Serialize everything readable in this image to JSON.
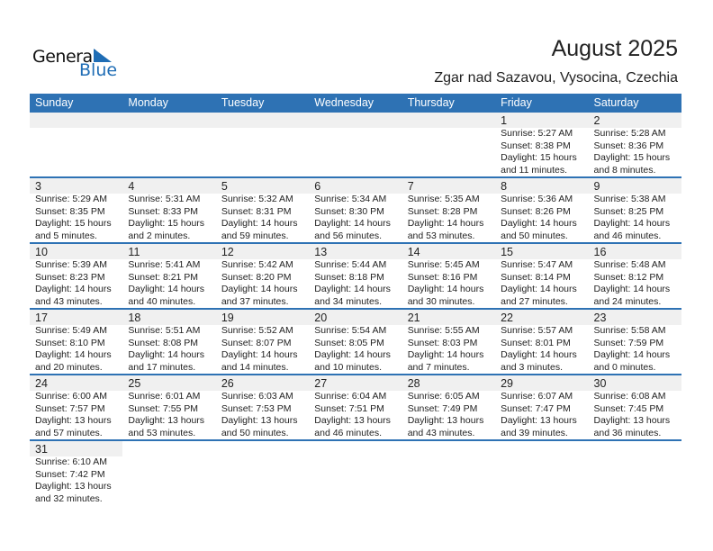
{
  "logo": {
    "line1": "General",
    "line2": "Blue"
  },
  "title": "August 2025",
  "location": "Zgar nad Sazavou, Vysocina, Czechia",
  "colors": {
    "header": "#2e72b4",
    "datebar": "#f0f0f0"
  },
  "days": [
    "Sunday",
    "Monday",
    "Tuesday",
    "Wednesday",
    "Thursday",
    "Friday",
    "Saturday"
  ],
  "weeks": [
    [
      null,
      null,
      null,
      null,
      null,
      {
        "day": "1",
        "sunrise": "Sunrise: 5:27 AM",
        "sunset": "Sunset: 8:38 PM",
        "daylight1": "Daylight: 15 hours",
        "daylight2": "and 11 minutes."
      },
      {
        "day": "2",
        "sunrise": "Sunrise: 5:28 AM",
        "sunset": "Sunset: 8:36 PM",
        "daylight1": "Daylight: 15 hours",
        "daylight2": "and 8 minutes."
      }
    ],
    [
      {
        "day": "3",
        "sunrise": "Sunrise: 5:29 AM",
        "sunset": "Sunset: 8:35 PM",
        "daylight1": "Daylight: 15 hours",
        "daylight2": "and 5 minutes."
      },
      {
        "day": "4",
        "sunrise": "Sunrise: 5:31 AM",
        "sunset": "Sunset: 8:33 PM",
        "daylight1": "Daylight: 15 hours",
        "daylight2": "and 2 minutes."
      },
      {
        "day": "5",
        "sunrise": "Sunrise: 5:32 AM",
        "sunset": "Sunset: 8:31 PM",
        "daylight1": "Daylight: 14 hours",
        "daylight2": "and 59 minutes."
      },
      {
        "day": "6",
        "sunrise": "Sunrise: 5:34 AM",
        "sunset": "Sunset: 8:30 PM",
        "daylight1": "Daylight: 14 hours",
        "daylight2": "and 56 minutes."
      },
      {
        "day": "7",
        "sunrise": "Sunrise: 5:35 AM",
        "sunset": "Sunset: 8:28 PM",
        "daylight1": "Daylight: 14 hours",
        "daylight2": "and 53 minutes."
      },
      {
        "day": "8",
        "sunrise": "Sunrise: 5:36 AM",
        "sunset": "Sunset: 8:26 PM",
        "daylight1": "Daylight: 14 hours",
        "daylight2": "and 50 minutes."
      },
      {
        "day": "9",
        "sunrise": "Sunrise: 5:38 AM",
        "sunset": "Sunset: 8:25 PM",
        "daylight1": "Daylight: 14 hours",
        "daylight2": "and 46 minutes."
      }
    ],
    [
      {
        "day": "10",
        "sunrise": "Sunrise: 5:39 AM",
        "sunset": "Sunset: 8:23 PM",
        "daylight1": "Daylight: 14 hours",
        "daylight2": "and 43 minutes."
      },
      {
        "day": "11",
        "sunrise": "Sunrise: 5:41 AM",
        "sunset": "Sunset: 8:21 PM",
        "daylight1": "Daylight: 14 hours",
        "daylight2": "and 40 minutes."
      },
      {
        "day": "12",
        "sunrise": "Sunrise: 5:42 AM",
        "sunset": "Sunset: 8:20 PM",
        "daylight1": "Daylight: 14 hours",
        "daylight2": "and 37 minutes."
      },
      {
        "day": "13",
        "sunrise": "Sunrise: 5:44 AM",
        "sunset": "Sunset: 8:18 PM",
        "daylight1": "Daylight: 14 hours",
        "daylight2": "and 34 minutes."
      },
      {
        "day": "14",
        "sunrise": "Sunrise: 5:45 AM",
        "sunset": "Sunset: 8:16 PM",
        "daylight1": "Daylight: 14 hours",
        "daylight2": "and 30 minutes."
      },
      {
        "day": "15",
        "sunrise": "Sunrise: 5:47 AM",
        "sunset": "Sunset: 8:14 PM",
        "daylight1": "Daylight: 14 hours",
        "daylight2": "and 27 minutes."
      },
      {
        "day": "16",
        "sunrise": "Sunrise: 5:48 AM",
        "sunset": "Sunset: 8:12 PM",
        "daylight1": "Daylight: 14 hours",
        "daylight2": "and 24 minutes."
      }
    ],
    [
      {
        "day": "17",
        "sunrise": "Sunrise: 5:49 AM",
        "sunset": "Sunset: 8:10 PM",
        "daylight1": "Daylight: 14 hours",
        "daylight2": "and 20 minutes."
      },
      {
        "day": "18",
        "sunrise": "Sunrise: 5:51 AM",
        "sunset": "Sunset: 8:08 PM",
        "daylight1": "Daylight: 14 hours",
        "daylight2": "and 17 minutes."
      },
      {
        "day": "19",
        "sunrise": "Sunrise: 5:52 AM",
        "sunset": "Sunset: 8:07 PM",
        "daylight1": "Daylight: 14 hours",
        "daylight2": "and 14 minutes."
      },
      {
        "day": "20",
        "sunrise": "Sunrise: 5:54 AM",
        "sunset": "Sunset: 8:05 PM",
        "daylight1": "Daylight: 14 hours",
        "daylight2": "and 10 minutes."
      },
      {
        "day": "21",
        "sunrise": "Sunrise: 5:55 AM",
        "sunset": "Sunset: 8:03 PM",
        "daylight1": "Daylight: 14 hours",
        "daylight2": "and 7 minutes."
      },
      {
        "day": "22",
        "sunrise": "Sunrise: 5:57 AM",
        "sunset": "Sunset: 8:01 PM",
        "daylight1": "Daylight: 14 hours",
        "daylight2": "and 3 minutes."
      },
      {
        "day": "23",
        "sunrise": "Sunrise: 5:58 AM",
        "sunset": "Sunset: 7:59 PM",
        "daylight1": "Daylight: 14 hours",
        "daylight2": "and 0 minutes."
      }
    ],
    [
      {
        "day": "24",
        "sunrise": "Sunrise: 6:00 AM",
        "sunset": "Sunset: 7:57 PM",
        "daylight1": "Daylight: 13 hours",
        "daylight2": "and 57 minutes."
      },
      {
        "day": "25",
        "sunrise": "Sunrise: 6:01 AM",
        "sunset": "Sunset: 7:55 PM",
        "daylight1": "Daylight: 13 hours",
        "daylight2": "and 53 minutes."
      },
      {
        "day": "26",
        "sunrise": "Sunrise: 6:03 AM",
        "sunset": "Sunset: 7:53 PM",
        "daylight1": "Daylight: 13 hours",
        "daylight2": "and 50 minutes."
      },
      {
        "day": "27",
        "sunrise": "Sunrise: 6:04 AM",
        "sunset": "Sunset: 7:51 PM",
        "daylight1": "Daylight: 13 hours",
        "daylight2": "and 46 minutes."
      },
      {
        "day": "28",
        "sunrise": "Sunrise: 6:05 AM",
        "sunset": "Sunset: 7:49 PM",
        "daylight1": "Daylight: 13 hours",
        "daylight2": "and 43 minutes."
      },
      {
        "day": "29",
        "sunrise": "Sunrise: 6:07 AM",
        "sunset": "Sunset: 7:47 PM",
        "daylight1": "Daylight: 13 hours",
        "daylight2": "and 39 minutes."
      },
      {
        "day": "30",
        "sunrise": "Sunrise: 6:08 AM",
        "sunset": "Sunset: 7:45 PM",
        "daylight1": "Daylight: 13 hours",
        "daylight2": "and 36 minutes."
      }
    ],
    [
      {
        "day": "31",
        "sunrise": "Sunrise: 6:10 AM",
        "sunset": "Sunset: 7:42 PM",
        "daylight1": "Daylight: 13 hours",
        "daylight2": "and 32 minutes."
      },
      null,
      null,
      null,
      null,
      null,
      null
    ]
  ]
}
